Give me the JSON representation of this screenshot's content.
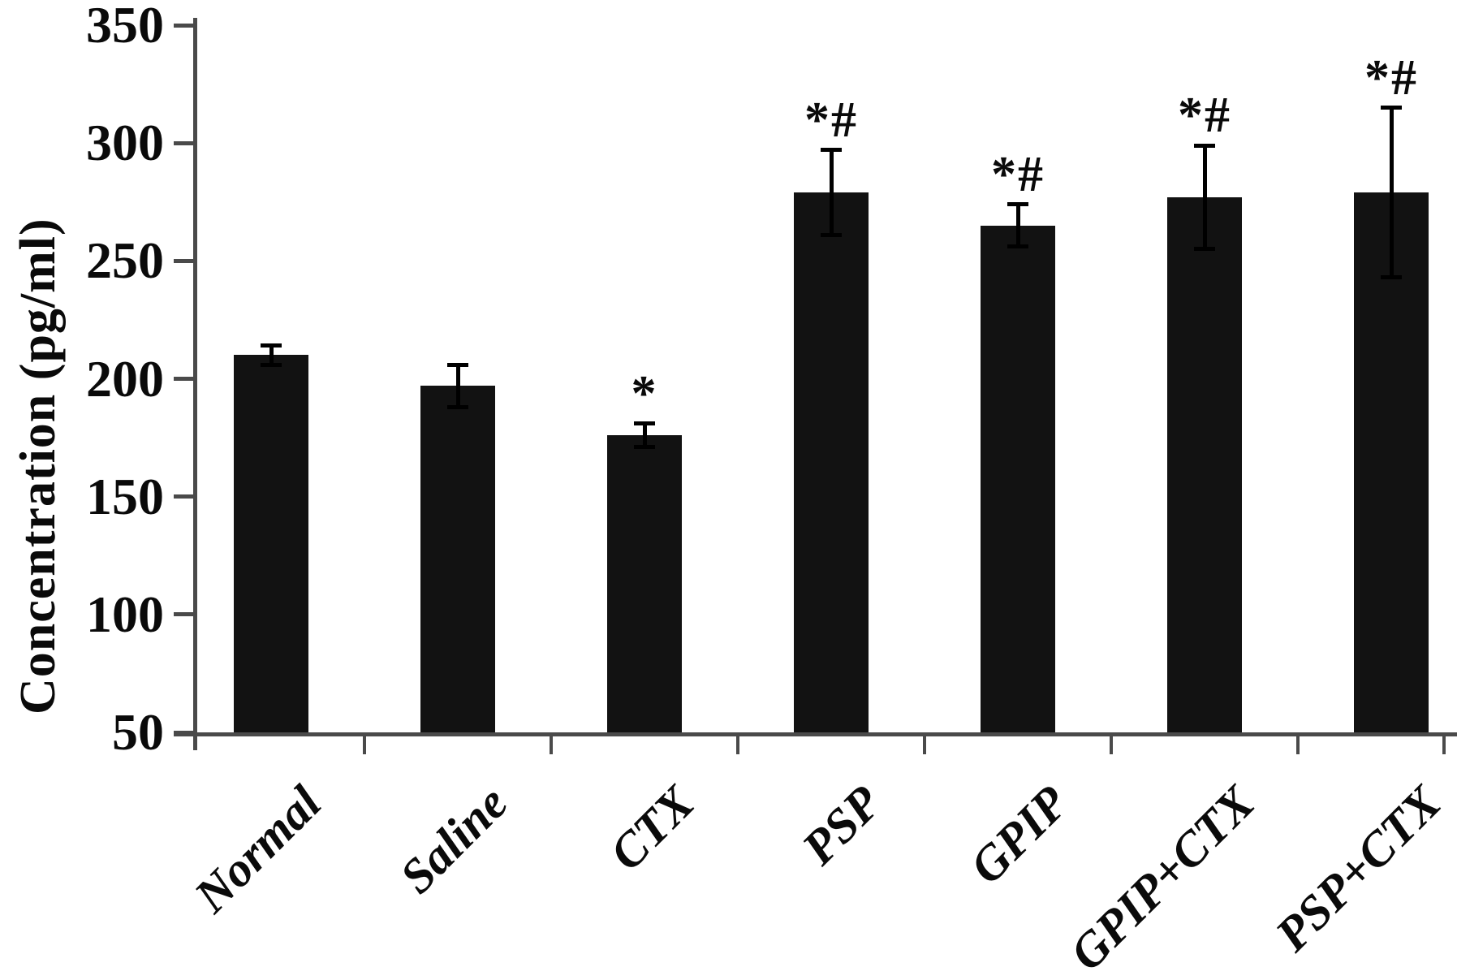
{
  "chart_data": {
    "type": "bar",
    "title": "",
    "xlabel": "",
    "ylabel": "Concentration (pg/ml)",
    "ylim": [
      50,
      350
    ],
    "yticks": [
      50,
      100,
      150,
      200,
      250,
      300,
      350
    ],
    "categories": [
      "Normal",
      "Saline",
      "CTX",
      "PSP",
      "GPIP",
      "GPIP+CTX",
      "PSP+CTX"
    ],
    "values": [
      210,
      197,
      176,
      279,
      265,
      277,
      279
    ],
    "errors": [
      4,
      9,
      5,
      18,
      9,
      22,
      36
    ],
    "annotations": [
      "",
      "",
      "*",
      "*#",
      "*#",
      "*#",
      "*#"
    ],
    "error_bar_style": "symmetric-with-caps",
    "grid": false,
    "legend": null,
    "colors": {
      "bar": "#121212",
      "error_bar": "#000000",
      "axis": "#4a4a4a",
      "text": "#0a0a0a",
      "background": "#ffffff"
    }
  }
}
